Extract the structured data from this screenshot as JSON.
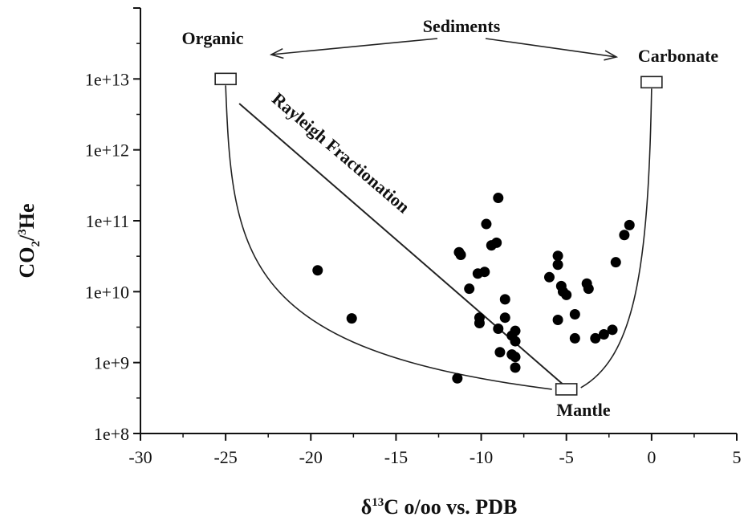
{
  "chart_data": {
    "type": "scatter",
    "xlabel": {
      "prefix": "δ",
      "sup": "13",
      "rest": "C o/oo vs. PDB"
    },
    "ylabel": {
      "a": "CO",
      "sub": "2",
      "b": "/",
      "sup": "3",
      "c": "He"
    },
    "xlim": [
      -30,
      5
    ],
    "ylim": [
      100000000,
      100000000000000
    ],
    "y_scale": "log",
    "x_ticks": [
      -30,
      -25,
      -20,
      -15,
      -10,
      -5,
      0,
      5
    ],
    "x_tick_labels": [
      "-30",
      "-25",
      "-20",
      "-15",
      "-10",
      "-5",
      "0",
      "5"
    ],
    "y_ticks": [
      100000000,
      1000000000,
      10000000000,
      100000000000,
      1000000000000,
      10000000000000
    ],
    "y_tick_labels": [
      "1e+8",
      "1e+9",
      "1e+10",
      "1e+11",
      "1e+12",
      "1e+13"
    ],
    "grid": false,
    "points": [
      {
        "x": -19.6,
        "y": 20000000000.0
      },
      {
        "x": -17.6,
        "y": 4200000000.0
      },
      {
        "x": -11.4,
        "y": 600000000.0
      },
      {
        "x": -11.3,
        "y": 36000000000.0
      },
      {
        "x": -11.2,
        "y": 33000000000.0
      },
      {
        "x": -10.7,
        "y": 11000000000.0
      },
      {
        "x": -10.2,
        "y": 18000000000.0
      },
      {
        "x": -9.8,
        "y": 19000000000.0
      },
      {
        "x": -10.1,
        "y": 4300000000.0
      },
      {
        "x": -10.1,
        "y": 3600000000.0
      },
      {
        "x": -9.7,
        "y": 90000000000.0
      },
      {
        "x": -9.4,
        "y": 45000000000.0
      },
      {
        "x": -9.1,
        "y": 49000000000.0
      },
      {
        "x": -9.0,
        "y": 210000000000.0
      },
      {
        "x": -9.0,
        "y": 3000000000.0
      },
      {
        "x": -8.9,
        "y": 1400000000.0
      },
      {
        "x": -8.6,
        "y": 7800000000.0
      },
      {
        "x": -8.6,
        "y": 4300000000.0
      },
      {
        "x": -8.2,
        "y": 2400000000.0
      },
      {
        "x": -8.0,
        "y": 2800000000.0
      },
      {
        "x": -8.0,
        "y": 2000000000.0
      },
      {
        "x": -8.2,
        "y": 1300000000.0
      },
      {
        "x": -8.0,
        "y": 1200000000.0
      },
      {
        "x": -8.0,
        "y": 850000000.0
      },
      {
        "x": -6.0,
        "y": 16000000000.0
      },
      {
        "x": -5.5,
        "y": 32000000000.0
      },
      {
        "x": -5.5,
        "y": 24000000000.0
      },
      {
        "x": -5.3,
        "y": 12000000000.0
      },
      {
        "x": -5.2,
        "y": 10000000000.0
      },
      {
        "x": -5.0,
        "y": 9000000000.0
      },
      {
        "x": -5.5,
        "y": 4000000000.0
      },
      {
        "x": -4.5,
        "y": 4800000000.0
      },
      {
        "x": -4.5,
        "y": 2200000000.0
      },
      {
        "x": -3.8,
        "y": 13000000000.0
      },
      {
        "x": -3.7,
        "y": 11000000000.0
      },
      {
        "x": -3.3,
        "y": 2200000000.0
      },
      {
        "x": -2.8,
        "y": 2500000000.0
      },
      {
        "x": -2.3,
        "y": 2900000000.0
      },
      {
        "x": -2.1,
        "y": 26000000000.0
      },
      {
        "x": -1.6,
        "y": 63000000000.0
      },
      {
        "x": -1.3,
        "y": 87000000000.0
      }
    ],
    "end_members": [
      {
        "name": "Organic",
        "x": -25,
        "y": 10000000000000.0
      },
      {
        "name": "Carbonate",
        "x": 0,
        "y": 9000000000000.0
      },
      {
        "name": "Mantle",
        "x": -5,
        "y": 420000000.0
      }
    ],
    "annotations": {
      "sediments": "Sediments",
      "organic": "Organic",
      "carbonate": "Carbonate",
      "mantle": "Mantle",
      "rayleigh": "Rayleigh Fractionation"
    }
  }
}
